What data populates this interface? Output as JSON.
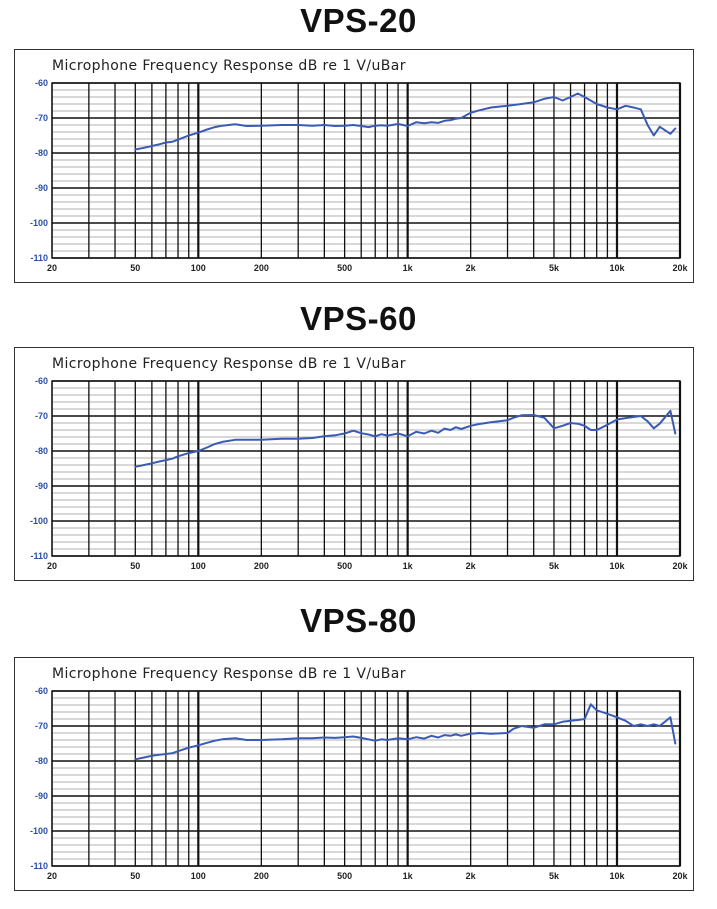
{
  "chart_data": [
    {
      "type": "line",
      "model": "VPS-20",
      "title": "Microphone Frequency Response dB re 1 V/uBar",
      "x_scale": "log",
      "xlim": [
        20,
        20000
      ],
      "ylim": [
        -110,
        -60
      ],
      "grid": true,
      "x_tick_values": [
        20,
        50,
        100,
        200,
        500,
        1000,
        2000,
        5000,
        10000,
        20000
      ],
      "x_tick_labels": [
        "20",
        "50",
        "100",
        "200",
        "500",
        "1k",
        "2k",
        "5k",
        "10k",
        "20k"
      ],
      "y_tick_values": [
        -60,
        -70,
        -80,
        -90,
        -100,
        -110
      ],
      "y_tick_labels": [
        "-60",
        "-70",
        "-80",
        "-90",
        "-100",
        "-110"
      ],
      "series_color": "#3a5bb5",
      "series": [
        {
          "x": [
            50,
            55,
            60,
            65,
            70,
            75,
            80,
            90,
            100,
            110,
            120,
            130,
            150,
            170,
            200,
            250,
            300,
            350,
            400,
            450,
            500,
            550,
            600,
            650,
            700,
            750,
            800,
            900,
            1000,
            1100,
            1200,
            1300,
            1400,
            1500,
            1600,
            1700,
            1800,
            2000,
            2200,
            2500,
            3000,
            3200,
            3500,
            4000,
            4500,
            5000,
            5500,
            6000,
            6500,
            7000,
            8000,
            9000,
            10000,
            11000,
            12000,
            13000,
            14000,
            15000,
            16000,
            18000,
            19000
          ],
          "y": [
            -79.0,
            -78.5,
            -78.0,
            -77.5,
            -77.0,
            -76.8,
            -76.2,
            -75.0,
            -74.2,
            -73.3,
            -72.6,
            -72.2,
            -71.8,
            -72.3,
            -72.2,
            -72.0,
            -72.0,
            -72.2,
            -72.0,
            -72.3,
            -72.2,
            -72.0,
            -72.3,
            -72.6,
            -72.2,
            -72.1,
            -72.2,
            -71.7,
            -72.3,
            -71.2,
            -71.5,
            -71.2,
            -71.4,
            -70.8,
            -70.6,
            -70.2,
            -70.0,
            -68.5,
            -67.8,
            -67.0,
            -66.5,
            -66.3,
            -66.0,
            -65.5,
            -64.5,
            -64.0,
            -65.0,
            -64.0,
            -63.0,
            -64.0,
            -66.0,
            -67.0,
            -67.5,
            -66.5,
            -67.0,
            -67.5,
            -72.0,
            -75.0,
            -72.5,
            -74.5,
            -73.0
          ]
        }
      ]
    },
    {
      "type": "line",
      "model": "VPS-60",
      "title": "Microphone Frequency Response dB re 1 V/uBar",
      "x_scale": "log",
      "xlim": [
        20,
        20000
      ],
      "ylim": [
        -110,
        -60
      ],
      "grid": true,
      "x_tick_values": [
        20,
        50,
        100,
        200,
        500,
        1000,
        2000,
        5000,
        10000,
        20000
      ],
      "x_tick_labels": [
        "20",
        "50",
        "100",
        "200",
        "500",
        "1k",
        "2k",
        "5k",
        "10k",
        "20k"
      ],
      "y_tick_values": [
        -60,
        -70,
        -80,
        -90,
        -100,
        -110
      ],
      "y_tick_labels": [
        "-60",
        "-70",
        "-80",
        "-90",
        "-100",
        "-110"
      ],
      "series_color": "#3a5bb5",
      "series": [
        {
          "x": [
            50,
            55,
            60,
            65,
            70,
            75,
            80,
            90,
            100,
            110,
            120,
            130,
            150,
            170,
            200,
            250,
            300,
            350,
            400,
            450,
            500,
            550,
            600,
            650,
            700,
            750,
            800,
            900,
            1000,
            1100,
            1200,
            1300,
            1400,
            1500,
            1600,
            1700,
            1800,
            2000,
            2200,
            2500,
            3000,
            3200,
            3500,
            4000,
            4500,
            5000,
            5500,
            6000,
            6500,
            7000,
            7500,
            8000,
            9000,
            10000,
            11000,
            12000,
            13000,
            14000,
            15000,
            16000,
            18000,
            19000
          ],
          "y": [
            -84.5,
            -84.0,
            -83.5,
            -83.0,
            -82.6,
            -82.2,
            -81.5,
            -80.6,
            -80.0,
            -79.0,
            -78.0,
            -77.4,
            -76.8,
            -76.8,
            -76.8,
            -76.5,
            -76.5,
            -76.3,
            -75.8,
            -75.5,
            -75.0,
            -74.2,
            -74.9,
            -75.3,
            -75.8,
            -75.2,
            -75.6,
            -75.0,
            -75.8,
            -74.5,
            -75.0,
            -74.2,
            -74.8,
            -73.6,
            -74.0,
            -73.2,
            -73.7,
            -72.8,
            -72.3,
            -71.8,
            -71.2,
            -70.5,
            -69.8,
            -69.7,
            -70.5,
            -73.5,
            -72.8,
            -72.0,
            -72.2,
            -72.8,
            -74.0,
            -74.0,
            -72.5,
            -71.0,
            -70.6,
            -70.3,
            -70.0,
            -71.5,
            -73.5,
            -72.2,
            -68.5,
            -75.0
          ]
        }
      ]
    },
    {
      "type": "line",
      "model": "VPS-80",
      "title": "Microphone Frequency Response dB re 1 V/uBar",
      "x_scale": "log",
      "xlim": [
        20,
        20000
      ],
      "ylim": [
        -110,
        -60
      ],
      "grid": true,
      "x_tick_values": [
        20,
        50,
        100,
        200,
        500,
        1000,
        2000,
        5000,
        10000,
        20000
      ],
      "x_tick_labels": [
        "20",
        "50",
        "100",
        "200",
        "500",
        "1k",
        "2k",
        "5k",
        "10k",
        "20k"
      ],
      "y_tick_values": [
        -60,
        -70,
        -80,
        -90,
        -100,
        -110
      ],
      "y_tick_labels": [
        "-60",
        "-70",
        "-80",
        "-90",
        "-100",
        "-110"
      ],
      "series_color": "#3a5bb5",
      "series": [
        {
          "x": [
            50,
            55,
            60,
            65,
            70,
            75,
            80,
            90,
            100,
            110,
            120,
            130,
            150,
            170,
            200,
            250,
            300,
            350,
            400,
            450,
            500,
            550,
            600,
            650,
            700,
            750,
            800,
            900,
            1000,
            1100,
            1200,
            1300,
            1400,
            1500,
            1600,
            1700,
            1800,
            2000,
            2200,
            2500,
            3000,
            3200,
            3500,
            4000,
            4500,
            5000,
            5500,
            6000,
            6500,
            7000,
            7500,
            8000,
            9000,
            10000,
            11000,
            12000,
            13000,
            14000,
            15000,
            16000,
            18000,
            19000
          ],
          "y": [
            -79.5,
            -79.0,
            -78.5,
            -78.2,
            -78.0,
            -77.8,
            -77.2,
            -76.2,
            -75.5,
            -74.8,
            -74.2,
            -73.8,
            -73.5,
            -74.0,
            -74.0,
            -73.8,
            -73.5,
            -73.5,
            -73.3,
            -73.4,
            -73.2,
            -73.0,
            -73.4,
            -73.8,
            -74.2,
            -73.8,
            -74.0,
            -73.5,
            -73.8,
            -73.2,
            -73.6,
            -72.8,
            -73.3,
            -72.6,
            -72.8,
            -72.4,
            -72.8,
            -72.2,
            -72.0,
            -72.2,
            -72.0,
            -70.8,
            -70.0,
            -70.5,
            -69.5,
            -69.5,
            -68.8,
            -68.5,
            -68.3,
            -68.0,
            -63.8,
            -65.5,
            -66.5,
            -67.5,
            -68.5,
            -70.0,
            -69.5,
            -70.0,
            -69.5,
            -70.0,
            -67.5,
            -75.0
          ]
        }
      ]
    }
  ]
}
